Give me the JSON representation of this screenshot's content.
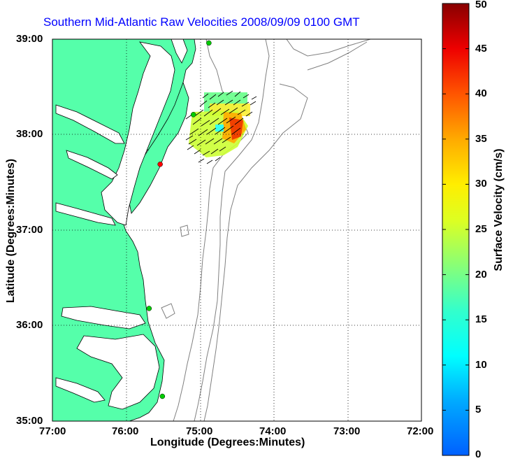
{
  "title": "Southern Mid-Atlantic Raw Velocities 2008/09/09 0100 GMT",
  "xlabel": "Longitude (Degrees:Minutes)",
  "ylabel": "Latitude (Degrees:Minutes)",
  "x_ticks": [
    "77:00",
    "76:00",
    "75:00",
    "74:00",
    "73:00",
    "72:00"
  ],
  "y_ticks": [
    "39:00",
    "38:00",
    "37:00",
    "36:00",
    "35:00"
  ],
  "colorbar": {
    "label": "Surface Velocity (cm/s)",
    "ticks": [
      "50",
      "45",
      "40",
      "35",
      "30",
      "25",
      "20",
      "15",
      "10",
      "5",
      "0"
    ],
    "range_cm_s": [
      0,
      50
    ]
  },
  "map": {
    "lon_range": [
      -77,
      -72
    ],
    "lat_range": [
      35,
      39
    ],
    "land_color": "#55ffaa",
    "grid": "dotted",
    "bathymetry_color": "#808080"
  },
  "stations": [
    {
      "lon": -74.88,
      "lat": 38.96,
      "color": "#00cc00"
    },
    {
      "lon": -75.09,
      "lat": 38.21,
      "color": "#00cc00"
    },
    {
      "lon": -75.54,
      "lat": 37.69,
      "color": "#ff0000"
    },
    {
      "lon": -75.69,
      "lat": 36.18,
      "color": "#00cc00"
    },
    {
      "lon": -75.51,
      "lat": 35.26,
      "color": "#00cc00"
    }
  ]
}
